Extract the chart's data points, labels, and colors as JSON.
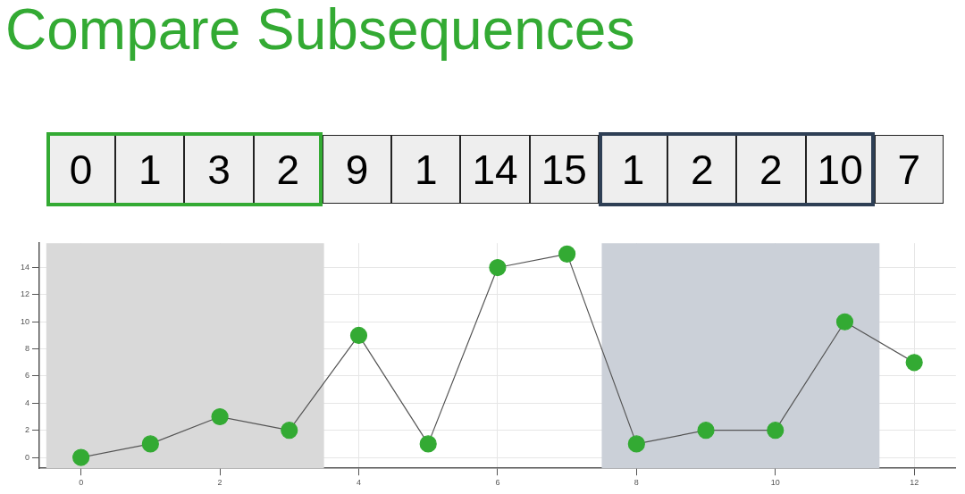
{
  "chart_data": [
    {
      "type": "other",
      "title": "Compare Subsequences",
      "annotations": [
        "0",
        "1",
        "3",
        "2",
        "9",
        "1",
        "14",
        "15",
        "1",
        "2",
        "2",
        "10",
        "7"
      ]
    },
    {
      "type": "line",
      "x": [
        0,
        1,
        2,
        3,
        4,
        5,
        6,
        7,
        8,
        9,
        10,
        11,
        12
      ],
      "series": [
        {
          "color": "#33aa33",
          "values": [
            0,
            1,
            3,
            2,
            9,
            1,
            14,
            15,
            1,
            2,
            2,
            10,
            7
          ]
        }
      ],
      "xlim": [
        -0.6,
        12.6
      ],
      "ylim": [
        -0.8,
        15.8
      ],
      "xticks": [
        0,
        2,
        4,
        6,
        8,
        10,
        12
      ],
      "yticks": [
        0,
        2,
        4,
        6,
        8,
        10,
        12,
        14
      ],
      "bands": [
        {
          "axis": "x",
          "from": -0.5,
          "to": 3.5,
          "color": "#d9d9d9"
        },
        {
          "axis": "x",
          "from": 7.5,
          "to": 11.5,
          "color": "#cbd0d8"
        }
      ],
      "grid": true,
      "legend": false,
      "marker": "circle",
      "line_style": "solid"
    }
  ]
}
